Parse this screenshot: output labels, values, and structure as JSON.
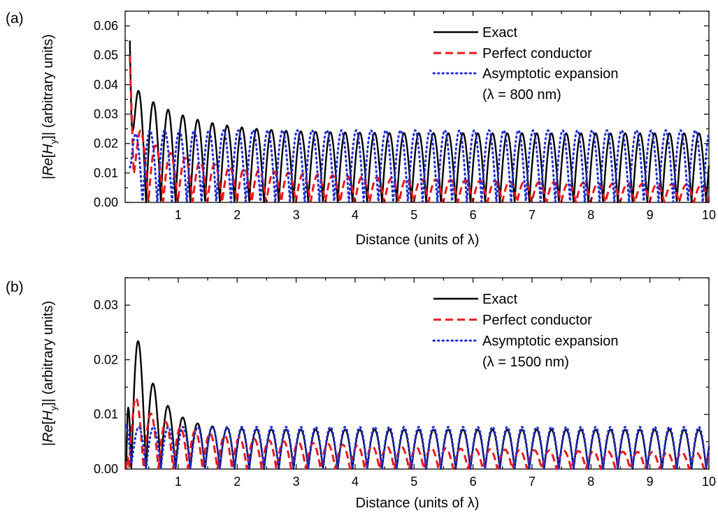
{
  "figure": {
    "panels": [
      "(a)",
      "(b)"
    ]
  },
  "legend": {
    "exact": "Exact",
    "perfect": "Perfect conductor",
    "asymptotic": "Asymptotic expansion"
  },
  "colors": {
    "exact": "#000000",
    "perfect": "#e8191b",
    "asymptotic": "#1f2fd6",
    "axis": "#000000"
  },
  "chart_data": [
    {
      "type": "line",
      "panel_label": "(a)",
      "xlabel": "Distance (units of λ)",
      "ylabel_parts": [
        "|",
        "Re",
        "[",
        "H",
        "y",
        "]| (arbitrary units)"
      ],
      "legend_note": "(λ = 800 nm)",
      "legend_position": "top-right",
      "xlim": [
        0.1,
        10
      ],
      "ylim": [
        0,
        0.065
      ],
      "xticks": [
        1,
        2,
        3,
        4,
        5,
        6,
        7,
        8,
        9,
        10
      ],
      "xtick_labels": [
        "1",
        "2",
        "3",
        "4",
        "5",
        "6",
        "7",
        "8",
        "9",
        "10"
      ],
      "yticks": [
        0,
        0.01,
        0.02,
        0.03,
        0.04,
        0.05,
        0.06
      ],
      "ytick_labels": [
        "0.00",
        "0.01",
        "0.02",
        "0.03",
        "0.04",
        "0.05",
        "0.06"
      ],
      "grid": false,
      "series": [
        {
          "name": "Exact",
          "style": "solid",
          "x0": 0.18,
          "x1": 10.0,
          "amp_inf": 0.0235,
          "amp_decay": 0.0165,
          "decay_length": 0.9,
          "period": 0.5,
          "phase": 0.08,
          "start_value": 0.055
        },
        {
          "name": "Perfect conductor",
          "style": "dashed",
          "x0": 0.18,
          "x1": 10.0,
          "amp_inf": 0.0,
          "amp_c": 0.0158,
          "amp_power": 0.42,
          "period": 0.5,
          "phase": 0.12,
          "start_value": 0.05
        },
        {
          "name": "Asymptotic expansion",
          "style": "dotted",
          "x0": 0.18,
          "x1": 10.0,
          "amp_inf": 0.0245,
          "amp_decay": 0.0,
          "decay_length": 1.0,
          "period": 0.5,
          "phase": 0.02,
          "start_value": 0.012
        }
      ]
    },
    {
      "type": "line",
      "panel_label": "(b)",
      "xlabel": "Distance (units of λ)",
      "ylabel_parts": [
        "|",
        "Re",
        "[",
        "H",
        "y",
        "]| (arbitrary units)"
      ],
      "legend_note": "(λ = 1500 nm)",
      "legend_position": "top-right",
      "xlim": [
        0.1,
        10
      ],
      "ylim": [
        0,
        0.035
      ],
      "xticks": [
        1,
        2,
        3,
        4,
        5,
        6,
        7,
        8,
        9,
        10
      ],
      "xtick_labels": [
        "1",
        "2",
        "3",
        "4",
        "5",
        "6",
        "7",
        "8",
        "9",
        "10"
      ],
      "yticks": [
        0,
        0.01,
        0.02,
        0.03
      ],
      "ytick_labels": [
        "0.00",
        "0.01",
        "0.02",
        "0.03"
      ],
      "grid": false,
      "series": [
        {
          "name": "Exact",
          "style": "solid",
          "x0": 0.12,
          "x1": 10.0,
          "amp_inf": 0.0072,
          "amp_decay": 0.028,
          "decay_length": 0.38,
          "period": 0.5,
          "phase": 0.08,
          "start_value": 0.0
        },
        {
          "name": "Perfect conductor",
          "style": "dashed",
          "x0": 0.12,
          "x1": 10.0,
          "amp_inf": 0.0,
          "amp_c": 0.0078,
          "amp_power": 0.42,
          "period": 0.5,
          "phase": 0.04,
          "start_value": 0.0
        },
        {
          "name": "Asymptotic expansion",
          "style": "dotted",
          "x0": 0.12,
          "x1": 10.0,
          "amp_inf": 0.0077,
          "amp_decay": 0.0,
          "decay_length": 1.0,
          "period": 0.5,
          "phase": 0.08,
          "start_value": 0.008
        }
      ]
    }
  ]
}
